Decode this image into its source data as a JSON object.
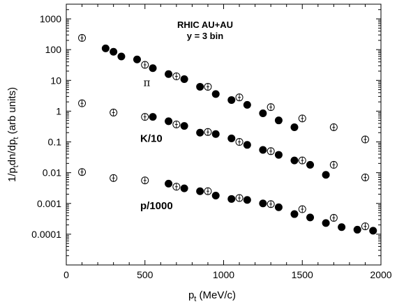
{
  "chart_data": {
    "type": "scatter",
    "title_lines": [
      "RHIC AU+AU",
      "y = 3 bin"
    ],
    "xlabel": {
      "main": "p",
      "sub": "t",
      "tail": " (MeV/c)"
    },
    "ylabel": {
      "a": "1/p",
      "b": "t",
      "c": "dn/dp",
      "d": "t",
      "e": " (arb units)"
    },
    "xlim": [
      0,
      2000
    ],
    "ylim": [
      1e-05,
      3000
    ],
    "yscale": "log",
    "x_ticks": [
      0,
      500,
      1000,
      1500,
      2000
    ],
    "x_tick_labels": [
      "0",
      "500",
      "1000",
      "1500",
      "2000"
    ],
    "y_ticks": [
      0.0001,
      0.001,
      0.01,
      0.1,
      1,
      10,
      100,
      1000
    ],
    "y_tick_labels": [
      "0.0001",
      "0.001",
      "0.01",
      "0.1",
      "1",
      "10",
      "100",
      "1000"
    ],
    "grid": false,
    "series_labels": [
      {
        "text": "π",
        "x": 490,
        "y": 6.5,
        "style": "pi"
      },
      {
        "text": "K/10",
        "x": 470,
        "y": 0.1,
        "style": "bold"
      },
      {
        "text": "p/1000",
        "x": 470,
        "y": 0.00065,
        "style": "bold"
      }
    ],
    "series": [
      {
        "marker": "open-circle",
        "group": "pi",
        "points": [
          {
            "x": 100,
            "y": 240
          },
          {
            "x": 500,
            "y": 32
          },
          {
            "x": 700,
            "y": 13.5
          },
          {
            "x": 900,
            "y": 6.2
          },
          {
            "x": 1100,
            "y": 2.8
          },
          {
            "x": 1300,
            "y": 1.35
          },
          {
            "x": 1500,
            "y": 0.58
          },
          {
            "x": 1700,
            "y": 0.3
          },
          {
            "x": 1900,
            "y": 0.12
          }
        ]
      },
      {
        "marker": "filled-circle",
        "group": "pi",
        "points": [
          {
            "x": 250,
            "y": 110
          },
          {
            "x": 300,
            "y": 85
          },
          {
            "x": 350,
            "y": 60
          },
          {
            "x": 450,
            "y": 48
          },
          {
            "x": 550,
            "y": 25
          },
          {
            "x": 650,
            "y": 16
          },
          {
            "x": 750,
            "y": 11
          },
          {
            "x": 850,
            "y": 6.2
          },
          {
            "x": 950,
            "y": 3.6
          },
          {
            "x": 1050,
            "y": 2.3
          },
          {
            "x": 1150,
            "y": 1.6
          },
          {
            "x": 1250,
            "y": 0.85
          },
          {
            "x": 1350,
            "y": 0.5
          },
          {
            "x": 1450,
            "y": 0.3
          }
        ]
      },
      {
        "marker": "open-circle",
        "group": "K",
        "points": [
          {
            "x": 100,
            "y": 1.8
          },
          {
            "x": 300,
            "y": 0.9
          },
          {
            "x": 500,
            "y": 0.65
          },
          {
            "x": 700,
            "y": 0.37
          },
          {
            "x": 900,
            "y": 0.21
          },
          {
            "x": 1100,
            "y": 0.1
          },
          {
            "x": 1300,
            "y": 0.05
          },
          {
            "x": 1500,
            "y": 0.025
          },
          {
            "x": 1700,
            "y": 0.018
          },
          {
            "x": 1900,
            "y": 0.007
          }
        ]
      },
      {
        "marker": "filled-circle",
        "group": "K",
        "points": [
          {
            "x": 550,
            "y": 0.65
          },
          {
            "x": 650,
            "y": 0.47
          },
          {
            "x": 750,
            "y": 0.33
          },
          {
            "x": 850,
            "y": 0.2
          },
          {
            "x": 950,
            "y": 0.18
          },
          {
            "x": 1050,
            "y": 0.13
          },
          {
            "x": 1150,
            "y": 0.08
          },
          {
            "x": 1250,
            "y": 0.055
          },
          {
            "x": 1350,
            "y": 0.038
          },
          {
            "x": 1450,
            "y": 0.025
          },
          {
            "x": 1550,
            "y": 0.018
          },
          {
            "x": 1650,
            "y": 0.0085
          }
        ]
      },
      {
        "marker": "open-circle",
        "group": "p",
        "points": [
          {
            "x": 100,
            "y": 0.0105
          },
          {
            "x": 300,
            "y": 0.0067
          },
          {
            "x": 500,
            "y": 0.0056
          },
          {
            "x": 700,
            "y": 0.0035
          },
          {
            "x": 900,
            "y": 0.0025
          },
          {
            "x": 1100,
            "y": 0.0015
          },
          {
            "x": 1300,
            "y": 0.00095
          },
          {
            "x": 1500,
            "y": 0.00065
          },
          {
            "x": 1700,
            "y": 0.00034
          },
          {
            "x": 1900,
            "y": 0.00018
          }
        ]
      },
      {
        "marker": "filled-circle",
        "group": "p",
        "points": [
          {
            "x": 650,
            "y": 0.0044
          },
          {
            "x": 750,
            "y": 0.0031
          },
          {
            "x": 850,
            "y": 0.0025
          },
          {
            "x": 950,
            "y": 0.0018
          },
          {
            "x": 1050,
            "y": 0.0014
          },
          {
            "x": 1150,
            "y": 0.0013
          },
          {
            "x": 1250,
            "y": 0.001
          },
          {
            "x": 1350,
            "y": 0.00075
          },
          {
            "x": 1450,
            "y": 0.00045
          },
          {
            "x": 1550,
            "y": 0.00035
          },
          {
            "x": 1650,
            "y": 0.00023
          },
          {
            "x": 1750,
            "y": 0.00017
          },
          {
            "x": 1850,
            "y": 0.00014
          },
          {
            "x": 1950,
            "y": 0.00013
          }
        ]
      }
    ]
  }
}
